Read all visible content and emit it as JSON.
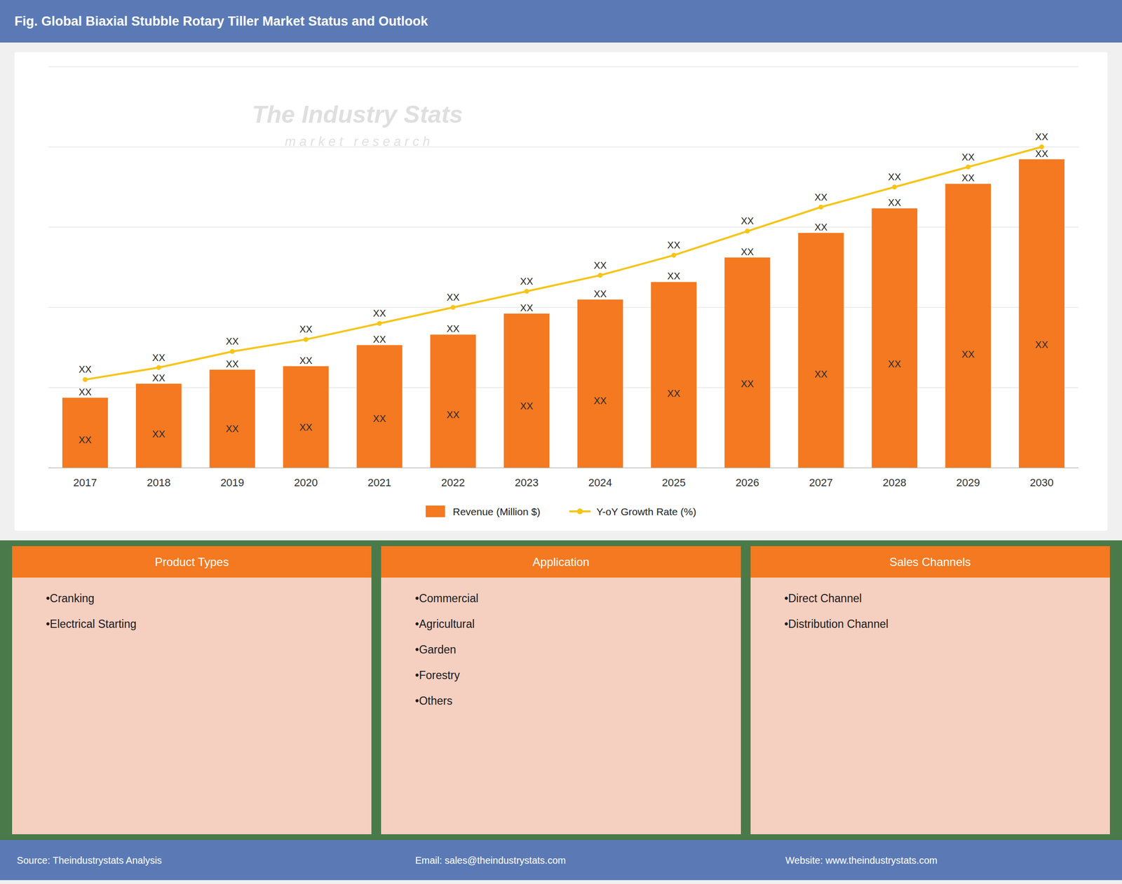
{
  "chart_data": {
    "type": "bar",
    "title": "Fig. Global Biaxial Stubble Rotary Tiller Market Status and Outlook",
    "categories": [
      2017,
      2018,
      2019,
      2020,
      2021,
      2022,
      2023,
      2024,
      2025,
      2026,
      2027,
      2028,
      2029,
      2030
    ],
    "series": [
      {
        "name": "Revenue (Million $)",
        "type": "bar",
        "color": "#f47920",
        "values": [
          20,
          24,
          28,
          29,
          35,
          38,
          44,
          48,
          53,
          60,
          67,
          74,
          81,
          88
        ],
        "value_labels": [
          "XX",
          "XX",
          "XX",
          "XX",
          "XX",
          "XX",
          "XX",
          "XX",
          "XX",
          "XX",
          "XX",
          "XX",
          "XX",
          "XX"
        ],
        "inner_value_labels": [
          "XX",
          "XX",
          "XX",
          "XX",
          "XX",
          "XX",
          "XX",
          "XX",
          "XX",
          "XX",
          "XX",
          "XX",
          "XX",
          "XX"
        ]
      },
      {
        "name": "Y-oY Growth Rate (%)",
        "type": "line",
        "color": "#f5c518",
        "marker": "circle",
        "axis": "y2",
        "values": [
          2.1,
          2.4,
          2.8,
          3.1,
          3.5,
          3.9,
          4.3,
          4.7,
          5.2,
          5.8,
          6.4,
          6.9,
          7.4,
          7.9
        ],
        "value_labels": [
          "XX",
          "XX",
          "XX",
          "XX",
          "XX",
          "XX",
          "XX",
          "XX",
          "XX",
          "XX",
          "XX",
          "XX",
          "XX",
          "XX"
        ]
      }
    ],
    "ylim": [
      0,
      114.4
    ],
    "yticks": [
      0,
      22.88,
      45.76,
      68.64,
      91.52,
      114.4
    ],
    "y2lim": [
      -0.1,
      9.9
    ],
    "grid": true,
    "tick_labels": "x",
    "data_labels": true,
    "legend": "bottom",
    "watermark": [
      "The Industry Stats",
      "m a r k e t   r e s e a r c h"
    ]
  },
  "banner_color": "#5b7ab5",
  "bottom_color": "#4a7a4a",
  "panels": [
    {
      "header": "Product Types",
      "header_color": "#f47920",
      "body_color": "#f5cfc0",
      "items": [
        "•Cranking",
        "•Electrical Starting"
      ]
    },
    {
      "header": "Application",
      "header_color": "#f47920",
      "body_color": "#f5cfc0",
      "items": [
        "•Commercial",
        "•Agricultural",
        "•Garden",
        "•Forestry",
        "•Others"
      ]
    },
    {
      "header": "Sales Channels",
      "header_color": "#f47920",
      "body_color": "#f5cfc0",
      "items": [
        "•Direct Channel",
        "•Distribution Channel"
      ]
    }
  ],
  "footer": [
    "Source: Theindustrystats Analysis",
    "Email: sales@theindustrystats.com",
    "Website: www.theindustrystats.com"
  ]
}
